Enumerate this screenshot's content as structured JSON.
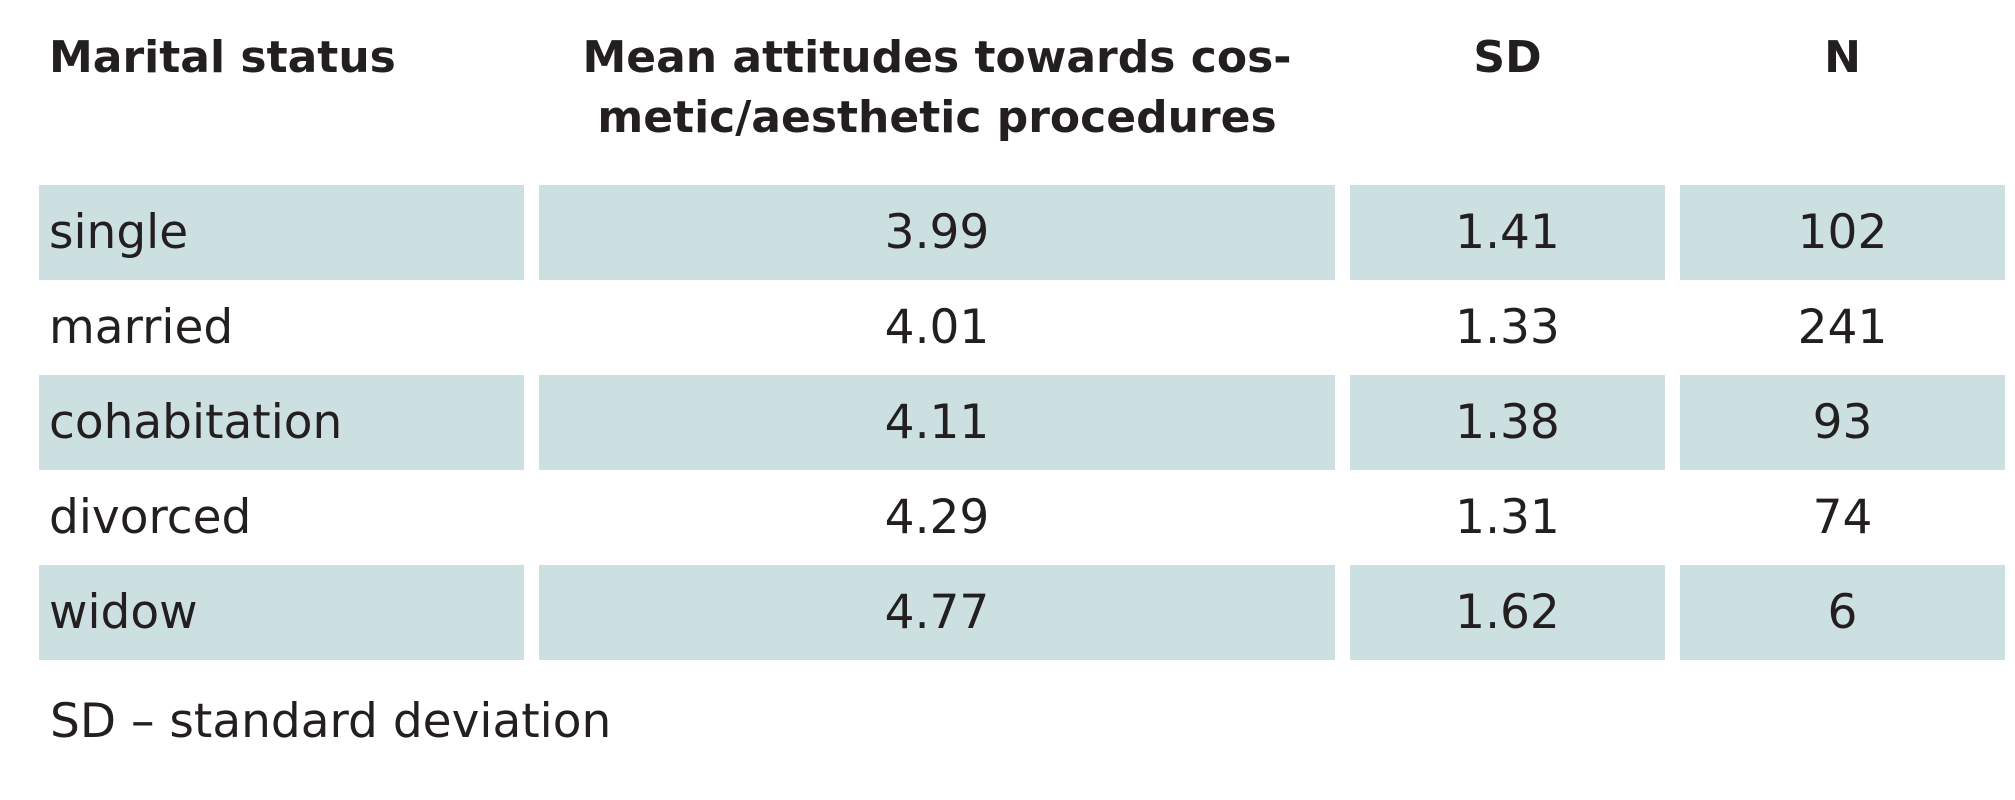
{
  "table": {
    "headers": [
      "Marital status",
      "Mean attitudes towards cos-\nmetic/aesthetic procedures",
      "SD",
      "N"
    ],
    "rows": [
      [
        "single",
        "3.99",
        "1.41",
        "102"
      ],
      [
        "married",
        "4.01",
        "1.33",
        "241"
      ],
      [
        "cohabitation",
        "4.11",
        "1.38",
        "93"
      ],
      [
        "divorced",
        "4.29",
        "1.31",
        "74"
      ],
      [
        "widow",
        "4.77",
        "1.62",
        "6"
      ]
    ]
  },
  "footnote": "SD – standard deviation"
}
